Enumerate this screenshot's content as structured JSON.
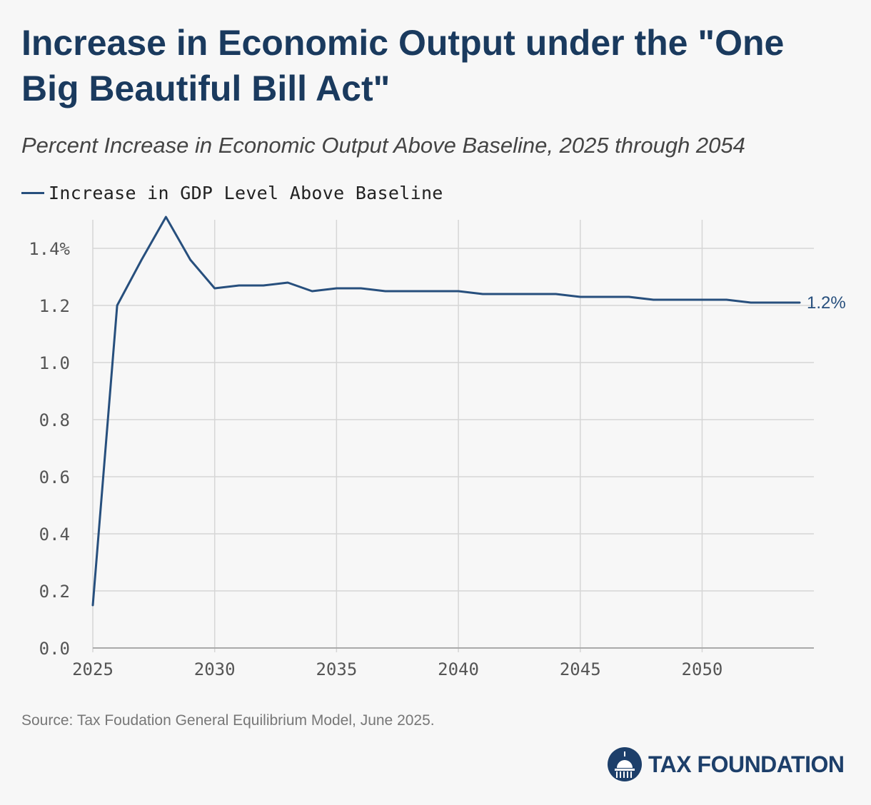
{
  "header": {
    "title": "Increase in Economic Output under the \"One Big Beautiful Bill Act\"",
    "subtitle": "Percent Increase in Economic Output Above Baseline, 2025 through 2054"
  },
  "legend": {
    "label": "Increase in GDP Level Above Baseline"
  },
  "footer": {
    "source": "Source: Tax Foudation General Equilibrium Model, June 2025.",
    "logo_text": "TAX FOUNDATION"
  },
  "colors": {
    "series": "#274f7d",
    "grid": "#d6d6d6",
    "axis": "#aaaaaa",
    "tick_text": "#555555",
    "title": "#1a3a5e",
    "logo": "#1d3f6a"
  },
  "chart_data": {
    "type": "line",
    "title": "Increase in Economic Output under the \"One Big Beautiful Bill Act\"",
    "subtitle": "Percent Increase in Economic Output Above Baseline, 2025 through 2054",
    "xlabel": "",
    "ylabel": "",
    "xlim": [
      2025,
      2054
    ],
    "ylim": [
      0,
      1.5
    ],
    "x_ticks": [
      2025,
      2030,
      2035,
      2040,
      2045,
      2050
    ],
    "y_ticks": [
      0.0,
      0.2,
      0.4,
      0.6,
      0.8,
      1.0,
      1.2,
      1.4
    ],
    "y_tick_labels": [
      "0.0",
      "0.2",
      "0.4",
      "0.6",
      "0.8",
      "1.0",
      "1.2",
      "1.4%"
    ],
    "grid": true,
    "legend_position": "top-left",
    "end_label": "1.2%",
    "series": [
      {
        "name": "Increase in GDP Level Above Baseline",
        "x": [
          2025,
          2026,
          2027,
          2028,
          2029,
          2030,
          2031,
          2032,
          2033,
          2034,
          2035,
          2036,
          2037,
          2038,
          2039,
          2040,
          2041,
          2042,
          2043,
          2044,
          2045,
          2046,
          2047,
          2048,
          2049,
          2050,
          2051,
          2052,
          2053,
          2054
        ],
        "values": [
          0.15,
          1.2,
          1.36,
          1.51,
          1.36,
          1.26,
          1.27,
          1.27,
          1.28,
          1.25,
          1.26,
          1.26,
          1.25,
          1.25,
          1.25,
          1.25,
          1.24,
          1.24,
          1.24,
          1.24,
          1.23,
          1.23,
          1.23,
          1.22,
          1.22,
          1.22,
          1.22,
          1.21,
          1.21,
          1.21
        ]
      }
    ]
  }
}
